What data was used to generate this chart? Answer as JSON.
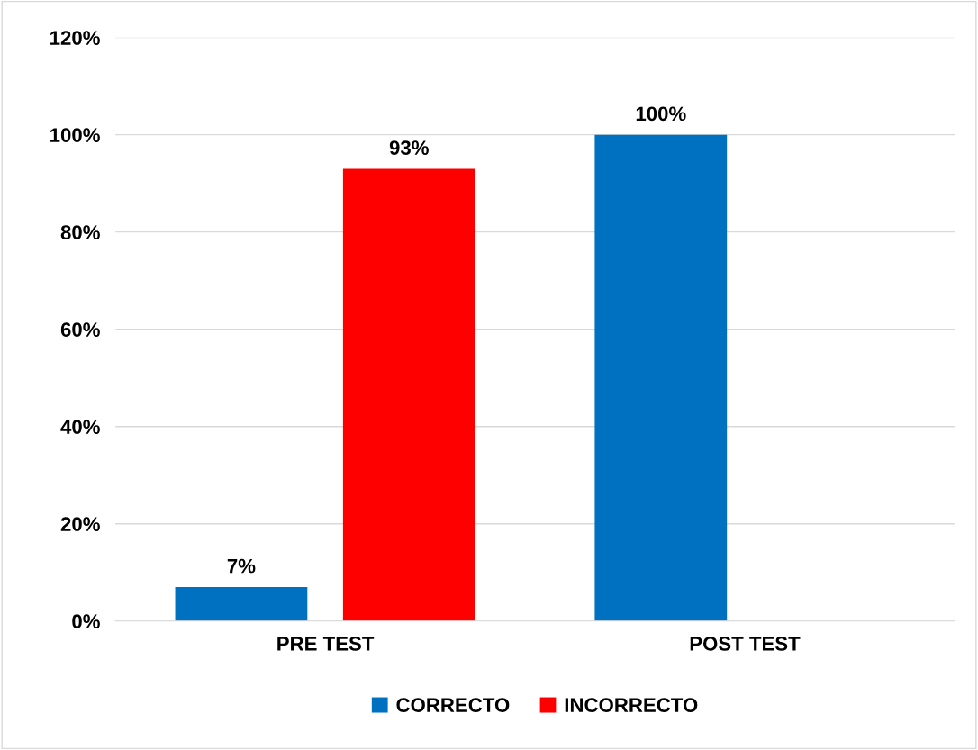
{
  "chart_data": {
    "type": "bar",
    "categories": [
      "PRE TEST",
      "POST TEST"
    ],
    "series": [
      {
        "name": "CORRECTO",
        "color": "#0070c0",
        "values": [
          7,
          100
        ],
        "value_labels": [
          "7%",
          "100%"
        ]
      },
      {
        "name": "INCORRECTO",
        "color": "#ff0000",
        "values": [
          93,
          null
        ],
        "value_labels": [
          "93%",
          null
        ]
      }
    ],
    "ylim": [
      0,
      120
    ],
    "yticks": [
      {
        "value": 0,
        "label": "0%"
      },
      {
        "value": 20,
        "label": "20%"
      },
      {
        "value": 40,
        "label": "40%"
      },
      {
        "value": 60,
        "label": "60%"
      },
      {
        "value": 80,
        "label": "80%"
      },
      {
        "value": 100,
        "label": "100%"
      },
      {
        "value": 120,
        "label": "120%"
      }
    ],
    "grid": "y",
    "legend": "bottom"
  }
}
